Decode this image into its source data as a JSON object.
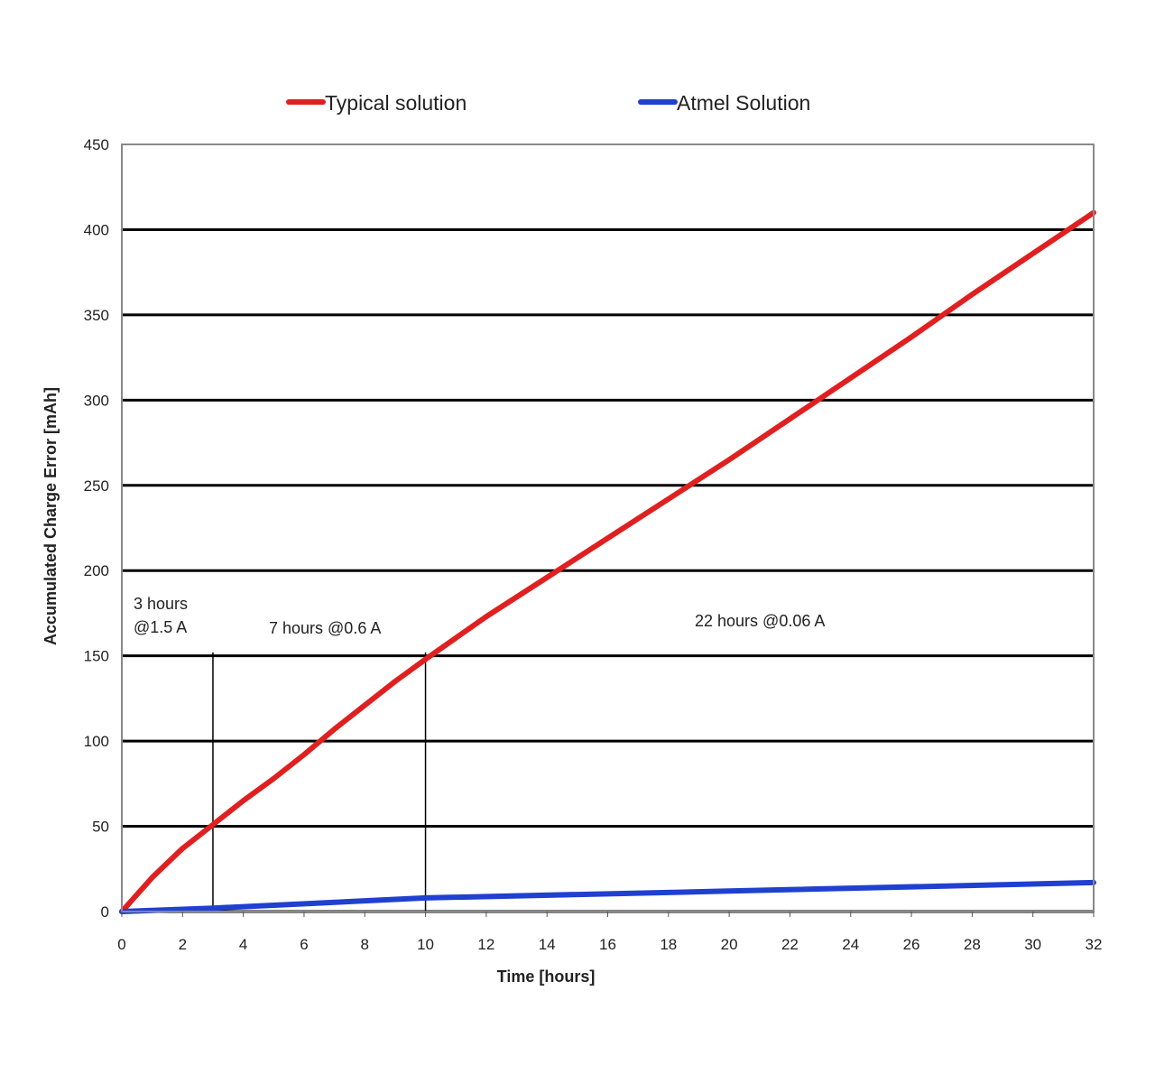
{
  "chart_data": {
    "type": "line",
    "xlabel": "Time [hours]",
    "ylabel": "Accumulated Charge Error [mAh]",
    "xlim": [
      0,
      32
    ],
    "ylim": [
      0,
      450
    ],
    "x_ticks": [
      "0",
      "2",
      "4",
      "6",
      "8",
      "10",
      "12",
      "14",
      "16",
      "18",
      "20",
      "22",
      "24",
      "26",
      "28",
      "30",
      "32"
    ],
    "y_ticks": [
      "0",
      "50",
      "100",
      "150",
      "200",
      "250",
      "300",
      "350",
      "400",
      "450"
    ],
    "grid": "horizontal",
    "legend_position": "top",
    "series": [
      {
        "name": "Typical solution",
        "color": "#e02020",
        "x": [
          0,
          1,
          2,
          3,
          4,
          5,
          6,
          7,
          8,
          9,
          10,
          12,
          14,
          16,
          18,
          20,
          22,
          24,
          26,
          28,
          30,
          32
        ],
        "values": [
          0,
          20,
          37,
          51,
          65,
          78,
          92,
          107,
          121,
          135,
          148,
          173,
          196,
          219,
          242,
          265,
          289,
          313,
          337,
          362,
          386,
          410
        ]
      },
      {
        "name": "Atmel Solution",
        "color": "#2040d0",
        "x": [
          0,
          3,
          10,
          20,
          32
        ],
        "values": [
          0,
          2,
          8,
          12,
          17
        ]
      }
    ],
    "vlines": [
      3,
      10
    ],
    "annotations": [
      {
        "lines": [
          "3 hours",
          "@1.5 A"
        ]
      },
      {
        "lines": [
          "7 hours @0.6 A"
        ]
      },
      {
        "lines": [
          "22 hours @0.06 A"
        ]
      }
    ]
  }
}
